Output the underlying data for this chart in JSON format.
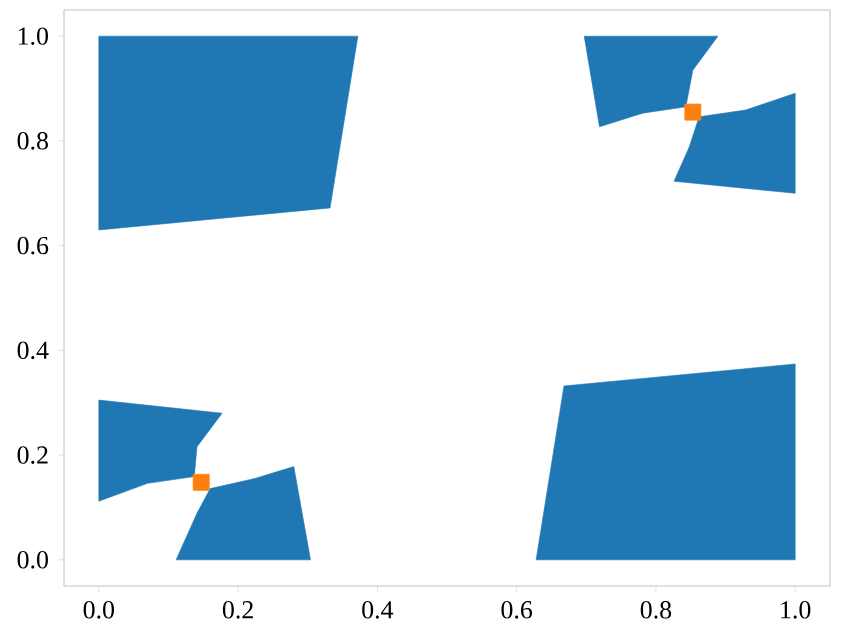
{
  "chart_data": {
    "type": "area",
    "xlim": [
      -0.05,
      1.05
    ],
    "ylim": [
      -0.05,
      1.05
    ],
    "xticks": [
      {
        "value": 0,
        "label": "0.0"
      },
      0.2,
      0.4,
      0.6,
      0.8,
      {
        "value": 1,
        "label": "1.0"
      }
    ],
    "yticks": [
      {
        "value": 0,
        "label": "0.0"
      },
      0.2,
      0.4,
      0.6,
      0.8,
      {
        "value": 1,
        "label": "1.0"
      }
    ],
    "series": [
      {
        "color": "#1f77b4",
        "x": [
          0.0,
          0.372,
          0.332,
          0.0
        ],
        "values": [
          1.0,
          1.0,
          0.672,
          0.63
        ]
      },
      {
        "color": "#1f77b4",
        "x": [
          0.628,
          1.0,
          1.0,
          0.668
        ],
        "values": [
          0.0,
          0.0,
          0.374,
          0.332
        ]
      },
      {
        "color": "#1f77b4",
        "x": [
          0.0,
          0.177,
          0.141,
          0.137,
          0.07,
          0.0
        ],
        "values": [
          0.305,
          0.28,
          0.216,
          0.159,
          0.146,
          0.112
        ]
      },
      {
        "color": "#1f77b4",
        "x": [
          0.16,
          0.223,
          0.28,
          0.304,
          0.111,
          0.141
        ],
        "values": [
          0.136,
          0.155,
          0.178,
          0.0,
          0.0,
          0.089
        ]
      },
      {
        "color": "#1f77b4",
        "x": [
          0.697,
          0.889,
          0.853,
          0.843,
          0.781,
          0.719
        ],
        "values": [
          1.0,
          1.0,
          0.935,
          0.865,
          0.853,
          0.827
        ]
      },
      {
        "color": "#1f77b4",
        "x": [
          0.862,
          0.929,
          1.0,
          1.0,
          0.826,
          0.848
        ],
        "values": [
          0.846,
          0.859,
          0.891,
          0.7,
          0.723,
          0.789
        ]
      },
      {
        "type": "scatter",
        "marker": "square",
        "color": "#ff7f0e",
        "x": [
          0.147,
          0.853
        ],
        "values": [
          0.148,
          0.855
        ]
      }
    ]
  }
}
